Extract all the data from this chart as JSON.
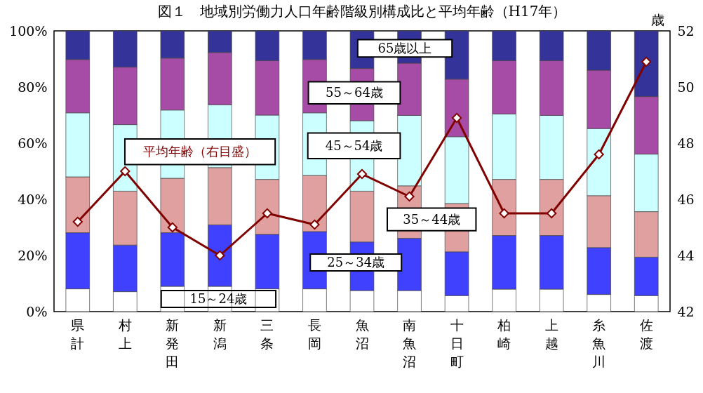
{
  "chart_data": {
    "type": "bar",
    "stacked": true,
    "title": "図１　地域別労働力人口年齢階級別構成比と平均年齢（H17年）",
    "y2label": "歳",
    "categories": [
      "県計",
      "村上",
      "新発田",
      "新潟",
      "三条",
      "長岡",
      "魚沼",
      "南魚沼",
      "十日町",
      "柏崎",
      "上越",
      "糸魚川",
      "佐渡"
    ],
    "ylim": [
      0,
      100
    ],
    "yticks": [
      {
        "value": 0,
        "label": "0%"
      },
      {
        "value": 20,
        "label": "20%"
      },
      {
        "value": 40,
        "label": "40%"
      },
      {
        "value": 60,
        "label": "60%"
      },
      {
        "value": 80,
        "label": "80%"
      },
      {
        "value": 100,
        "label": "100%"
      }
    ],
    "y2lim": [
      42,
      52
    ],
    "y2ticks": [
      42,
      44,
      46,
      48,
      50,
      52
    ],
    "grid": false,
    "series": [
      {
        "name": "15～24歳",
        "color": "#ffffff",
        "values": [
          8.1,
          7.1,
          9.0,
          9.0,
          8.1,
          8.1,
          7.5,
          7.5,
          5.7,
          8.0,
          8.0,
          6.1,
          5.7
        ]
      },
      {
        "name": "25～34歳",
        "color": "#4040ff",
        "values": [
          20.0,
          16.6,
          19.1,
          21.9,
          19.4,
          20.4,
          17.3,
          18.6,
          15.6,
          19.1,
          19.1,
          16.7,
          13.7
        ]
      },
      {
        "name": "35～44歳",
        "color": "#e0a0a0",
        "values": [
          19.9,
          19.2,
          19.4,
          20.4,
          19.6,
          20.0,
          18.1,
          18.7,
          17.2,
          20.0,
          20.0,
          18.5,
          16.2
        ]
      },
      {
        "name": "45～54歳",
        "color": "#ccffff",
        "values": [
          22.8,
          23.7,
          24.3,
          22.4,
          22.9,
          22.3,
          25.1,
          25.1,
          23.8,
          23.3,
          22.8,
          23.9,
          20.5
        ]
      },
      {
        "name": "55～64歳",
        "color": "#a64ca6",
        "values": [
          19.0,
          20.5,
          18.5,
          18.6,
          19.4,
          19.0,
          18.6,
          18.6,
          20.5,
          19.0,
          19.5,
          20.8,
          20.5
        ]
      },
      {
        "name": "65歳以上",
        "color": "#333399",
        "values": [
          10.2,
          12.9,
          9.7,
          7.7,
          10.6,
          10.2,
          13.4,
          11.5,
          17.2,
          10.6,
          10.6,
          14.0,
          23.4
        ]
      },
      {
        "name": "平均年齢（右目盛）",
        "type": "line",
        "axis": "y2",
        "marker": "diamond",
        "color": "#800000",
        "values": [
          45.2,
          47.0,
          45.0,
          44.0,
          45.5,
          45.1,
          46.9,
          46.1,
          48.9,
          45.5,
          45.5,
          47.6,
          50.9
        ]
      }
    ]
  }
}
